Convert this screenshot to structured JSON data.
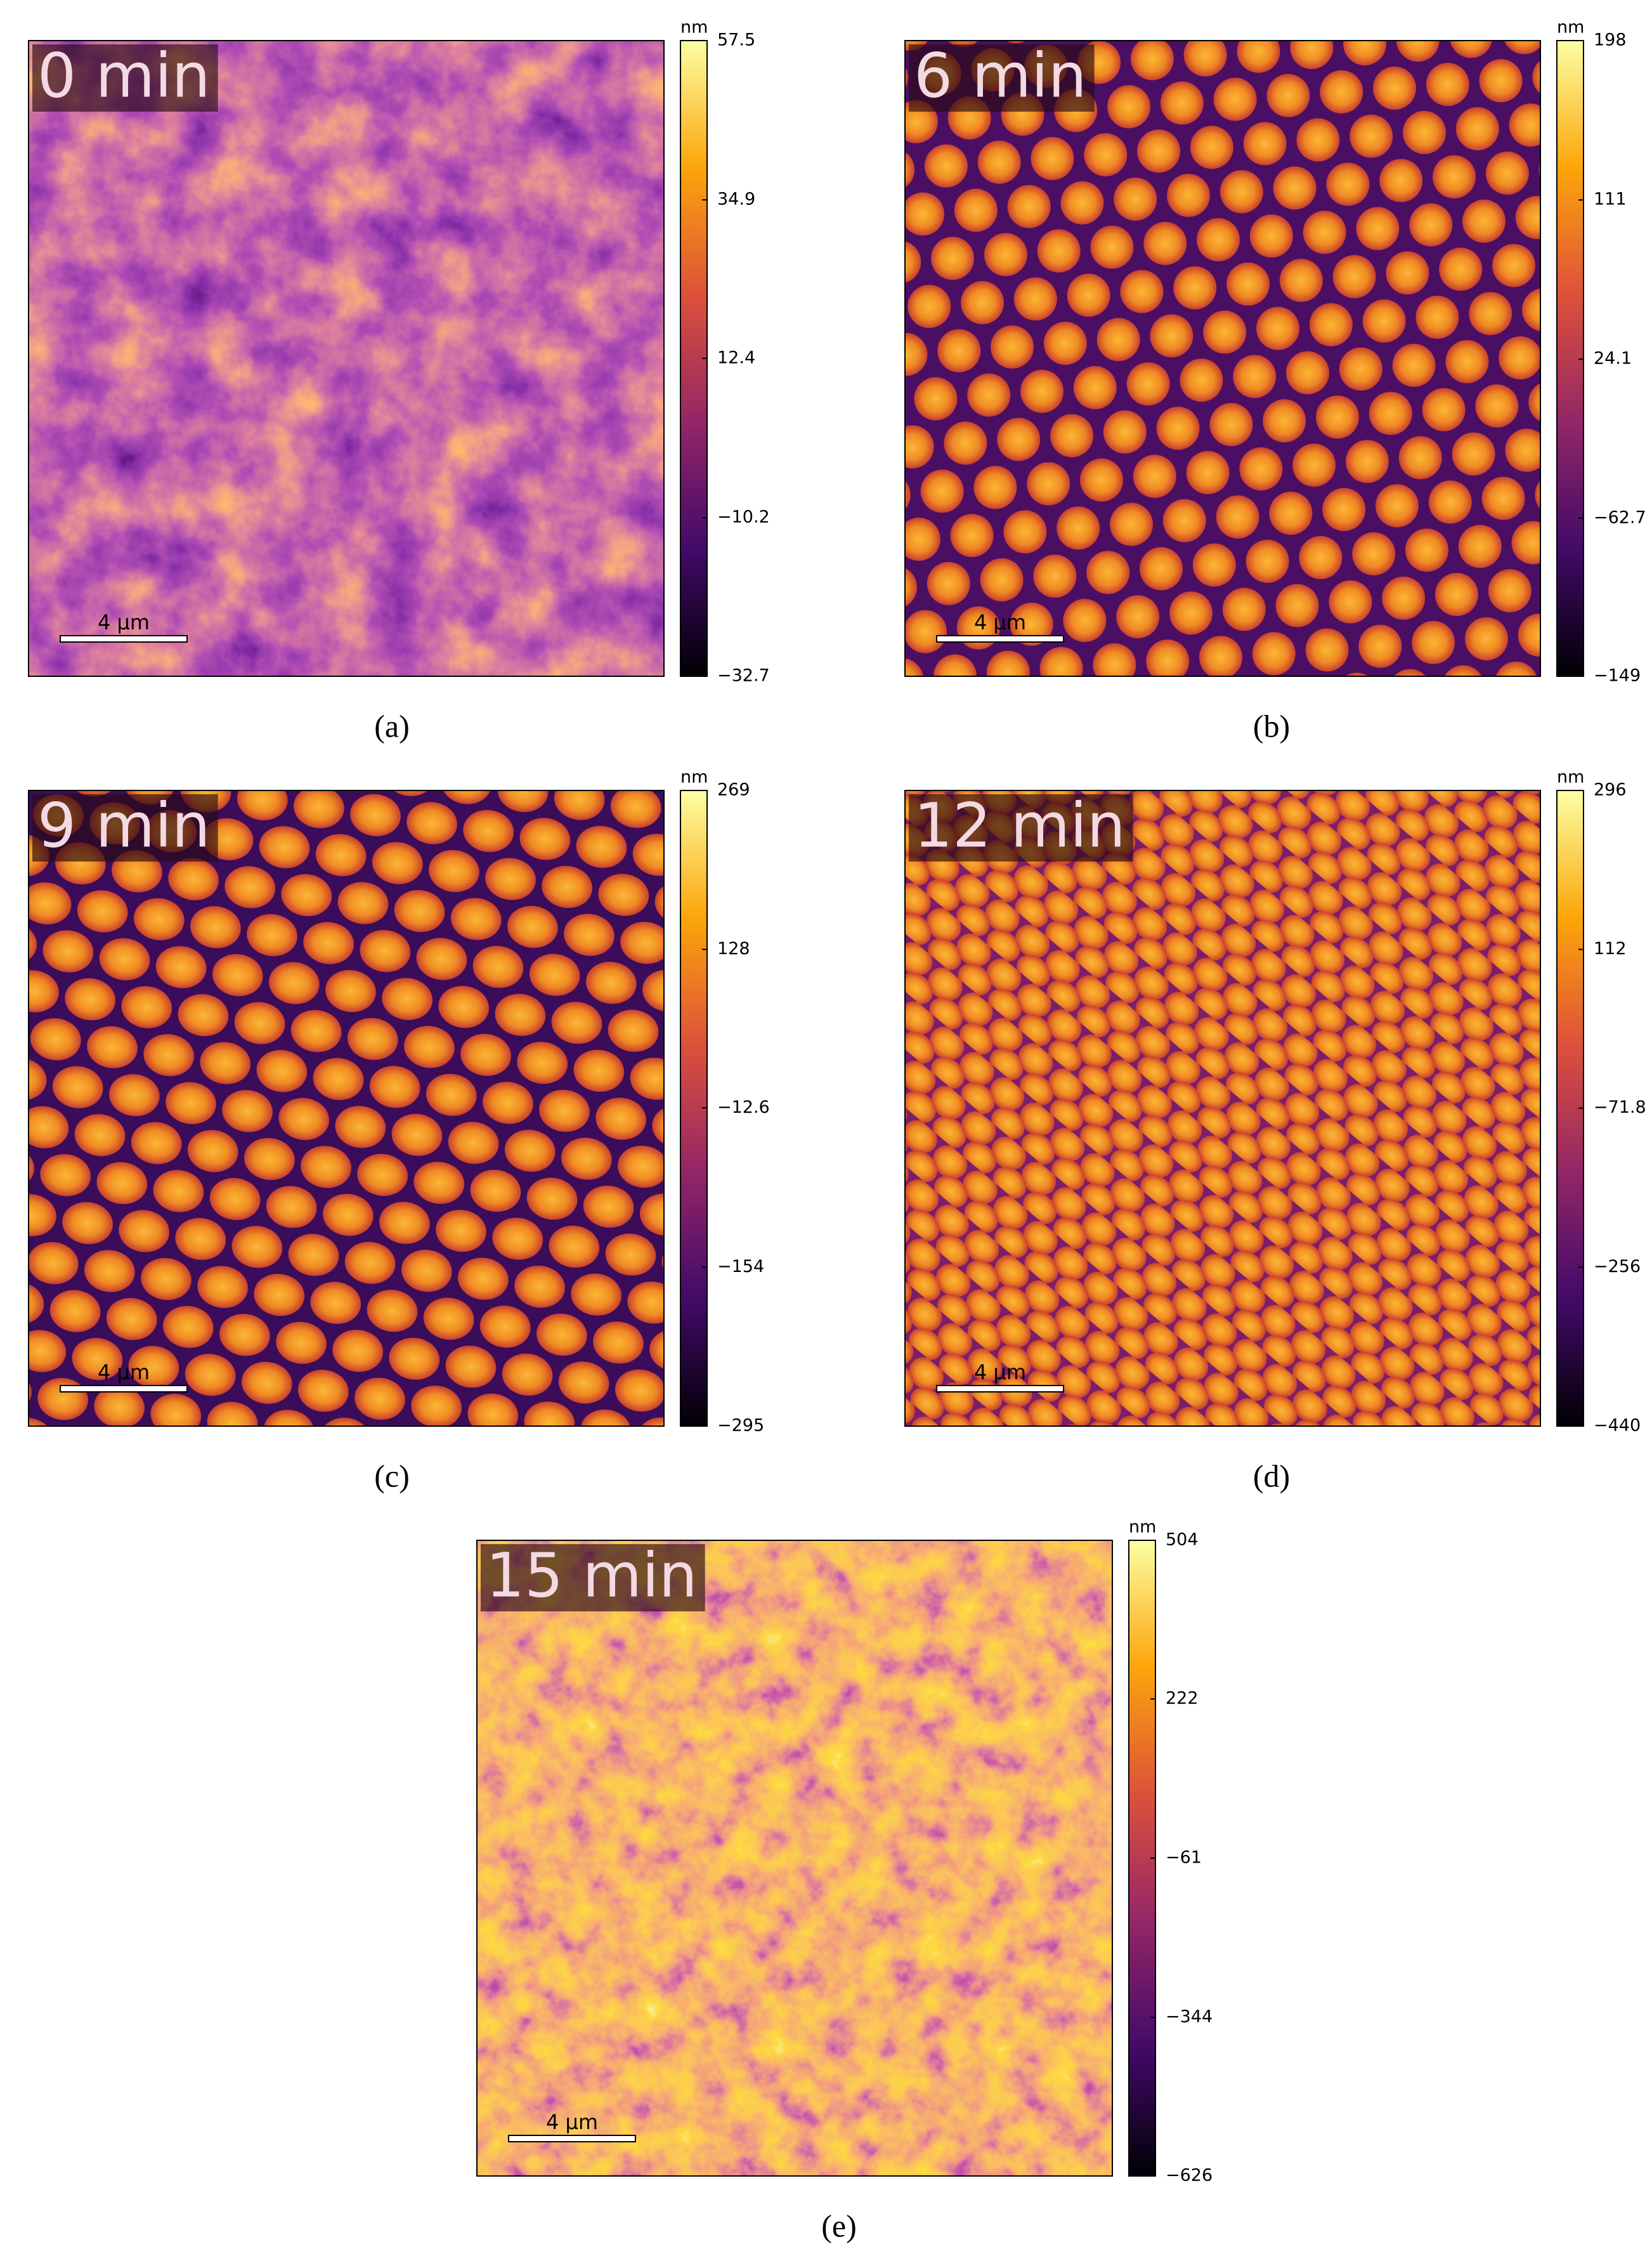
{
  "panels": [
    {
      "label": "(a)",
      "time": "0 min",
      "scale_bar": "4 µm",
      "colorbar": {
        "unit": "nm",
        "lim": [
          -32.7,
          57.5
        ],
        "ticks": [
          {
            "value": -32.7,
            "label": "−32.7"
          },
          {
            "value": -10.2,
            "label": "−10.2"
          },
          12.4,
          34.9,
          57.5
        ]
      }
    },
    {
      "label": "(b)",
      "time": "6 min",
      "scale_bar": "4 µm",
      "colorbar": {
        "unit": "nm",
        "lim": [
          -149,
          198
        ],
        "ticks": [
          {
            "value": -149,
            "label": "−149"
          },
          {
            "value": -62.7,
            "label": "−62.7"
          },
          24.1,
          111,
          198
        ]
      }
    },
    {
      "label": "(c)",
      "time": "9 min",
      "scale_bar": "4 µm",
      "colorbar": {
        "unit": "nm",
        "lim": [
          -295,
          269
        ],
        "ticks": [
          {
            "value": -295,
            "label": "−295"
          },
          {
            "value": -154,
            "label": "−154"
          },
          {
            "value": -12.6,
            "label": "−12.6"
          },
          128,
          269
        ]
      }
    },
    {
      "label": "(d)",
      "time": "12 min",
      "scale_bar": "4 µm",
      "colorbar": {
        "unit": "nm",
        "lim": [
          -440,
          296
        ],
        "ticks": [
          {
            "value": -440,
            "label": "−440"
          },
          {
            "value": -256,
            "label": "−256"
          },
          {
            "value": -71.8,
            "label": "−71.8"
          },
          112,
          296
        ]
      }
    },
    {
      "label": "(e)",
      "time": "15 min",
      "scale_bar": "4 µm",
      "colorbar": {
        "unit": "nm",
        "lim": [
          -626,
          504
        ],
        "ticks": [
          {
            "value": -626,
            "label": "−626"
          },
          {
            "value": -344,
            "label": "−344"
          },
          {
            "value": -61,
            "label": "−61"
          },
          222,
          504
        ]
      }
    }
  ]
}
